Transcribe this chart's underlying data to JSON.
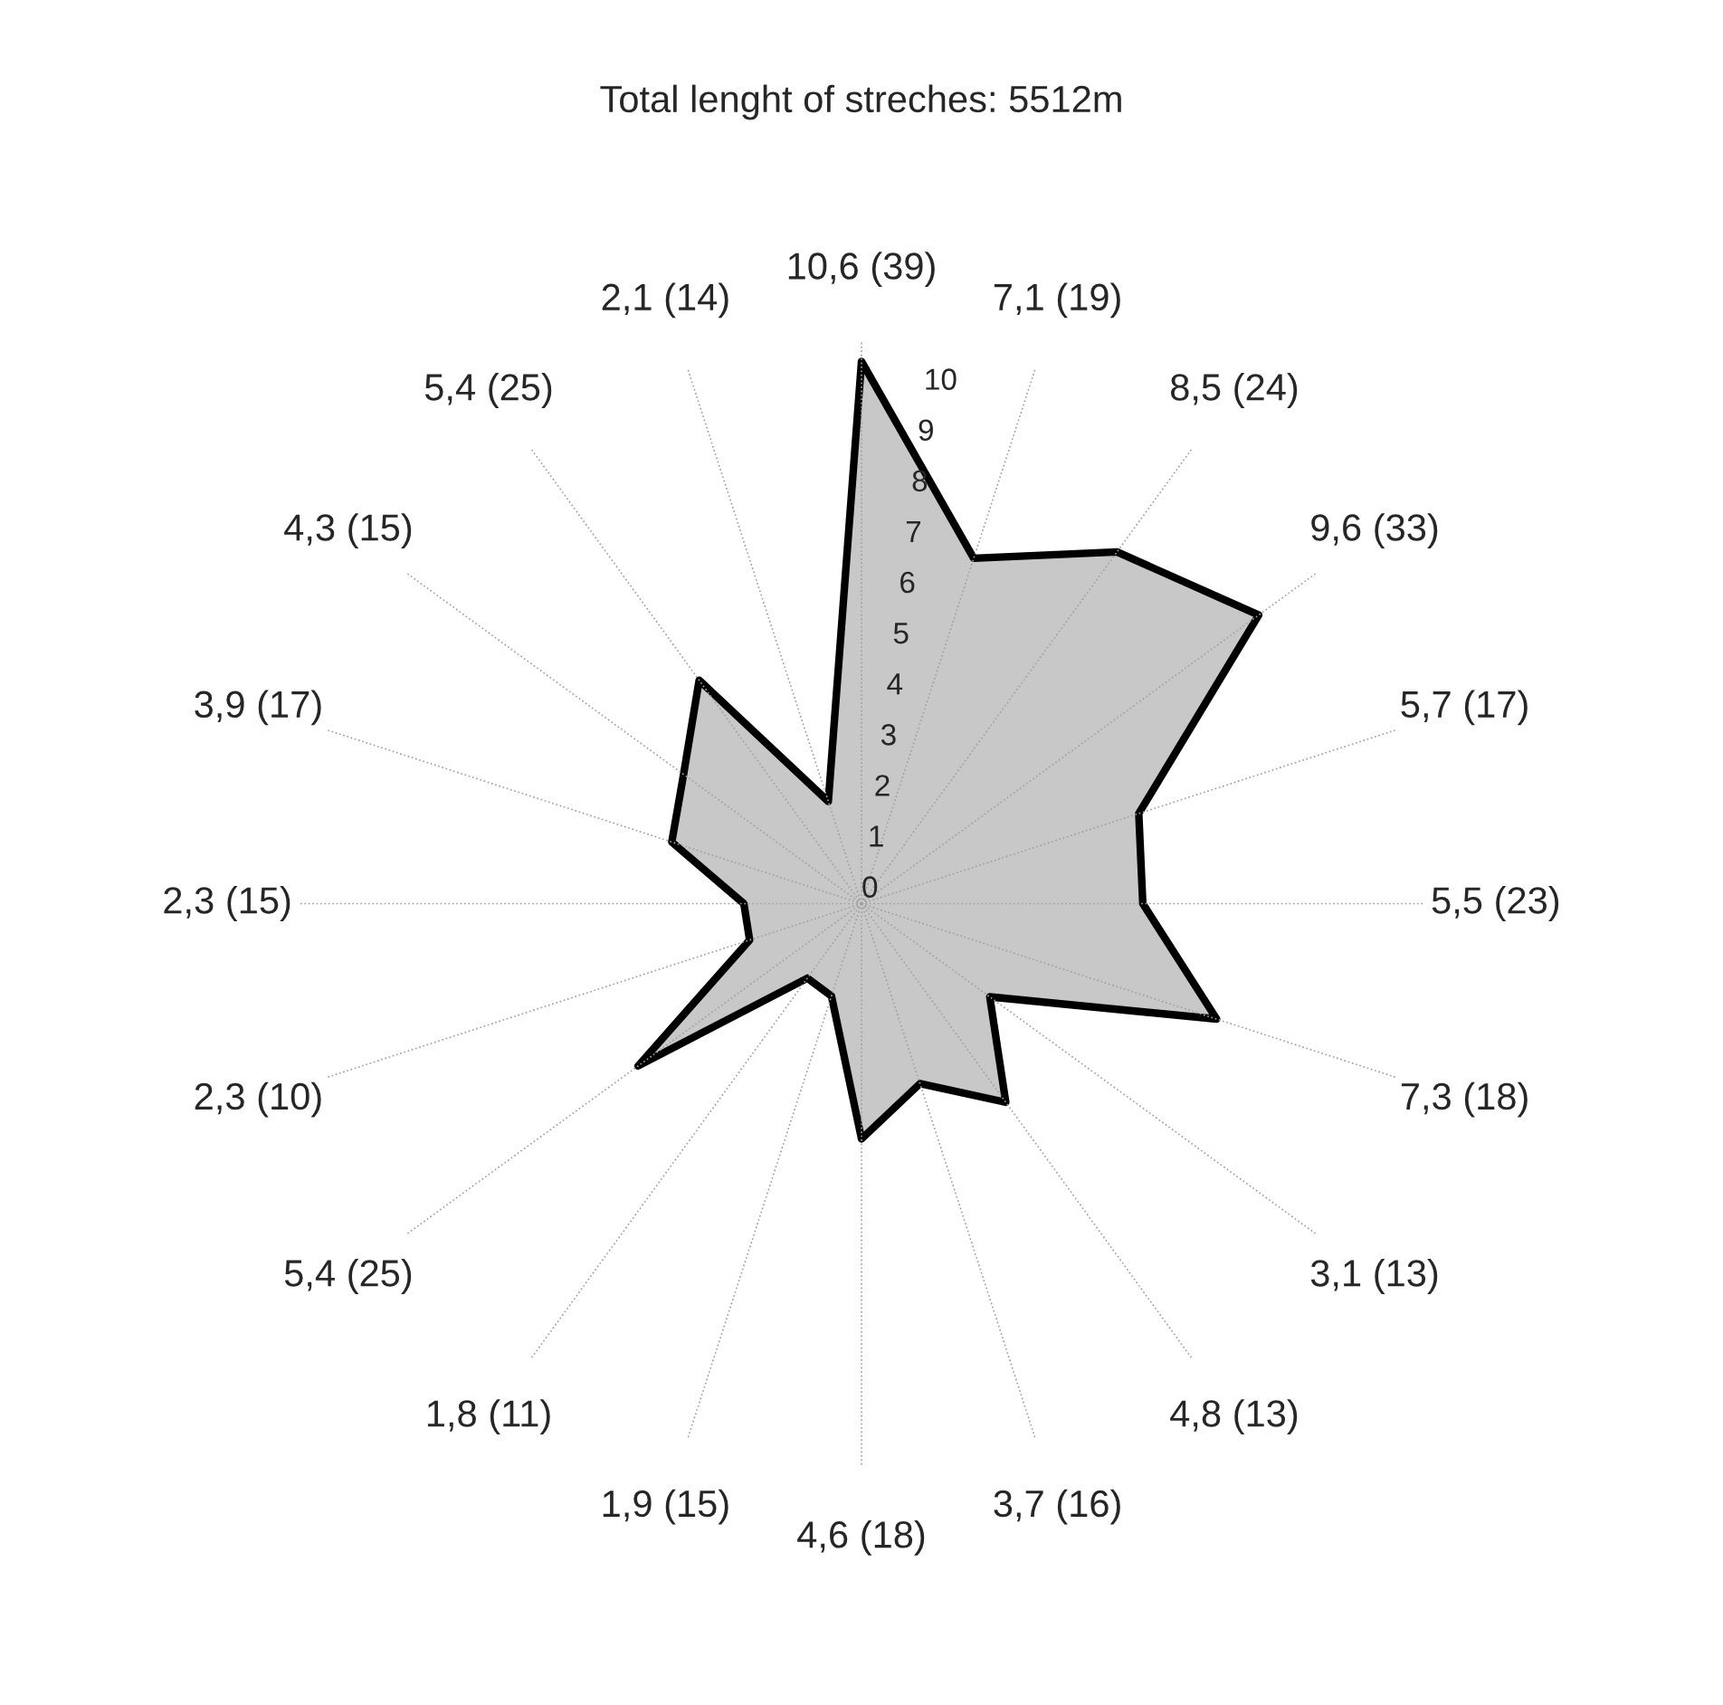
{
  "chart_data": {
    "type": "radar",
    "title": "Total lenght of streches: 5512m",
    "categories": [
      "10,6 (39)",
      "7,1 (19)",
      "8,5 (24)",
      "9,6 (33)",
      "5,7 (17)",
      "5,5 (23)",
      "7,3 (18)",
      "3,1 (13)",
      "4,8 (13)",
      "3,7 (16)",
      "4,6 (18)",
      "1,9 (15)",
      "1,8 (11)",
      "5,4 (25)",
      "2,3 (10)",
      "2,3 (15)",
      "3,9 (17)",
      "4,3 (15)",
      "5,4 (25)",
      "2,1 (14)"
    ],
    "series": [
      {
        "color": "#c8c8c8",
        "values": [
          10.6,
          7.1,
          8.5,
          9.6,
          5.7,
          5.5,
          7.3,
          3.1,
          4.8,
          3.7,
          4.6,
          1.9,
          1.8,
          5.4,
          2.3,
          2.3,
          3.9,
          4.3,
          5.4,
          2.1
        ]
      }
    ],
    "ylim": [
      0,
      11
    ],
    "yticks": [
      0,
      1,
      2,
      3,
      4,
      5,
      6,
      7,
      8,
      9,
      10
    ],
    "grid": "x",
    "legend": false
  }
}
